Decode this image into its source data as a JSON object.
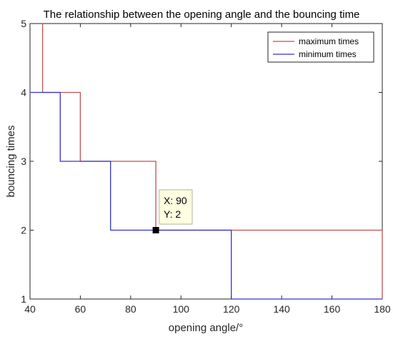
{
  "chart_data": {
    "type": "line",
    "title": "The relationship  between the opening angle and the bouncing time",
    "xlabel": "opening angle/°",
    "ylabel": "bouncing times",
    "xlim": [
      40,
      180
    ],
    "ylim": [
      1,
      5
    ],
    "xticks": [
      40,
      60,
      80,
      100,
      120,
      140,
      160,
      180
    ],
    "yticks": [
      1,
      2,
      3,
      4,
      5
    ],
    "grid": false,
    "legend_position": "top-right",
    "series": [
      {
        "name": "maximum times",
        "color": "#c0504d",
        "x": [
          45,
          45,
          60,
          60,
          90,
          90,
          180,
          180
        ],
        "y": [
          5,
          4,
          4,
          3,
          3,
          2,
          2,
          1
        ]
      },
      {
        "name": "minimum times",
        "color": "#3333cc",
        "x": [
          40,
          52,
          52,
          72,
          72,
          120,
          120,
          180
        ],
        "y": [
          4,
          4,
          3,
          3,
          2,
          2,
          1,
          1
        ]
      }
    ],
    "datatip": {
      "x": 90,
      "y": 2,
      "x_text": "X: 90",
      "y_text": "Y: 2"
    }
  }
}
